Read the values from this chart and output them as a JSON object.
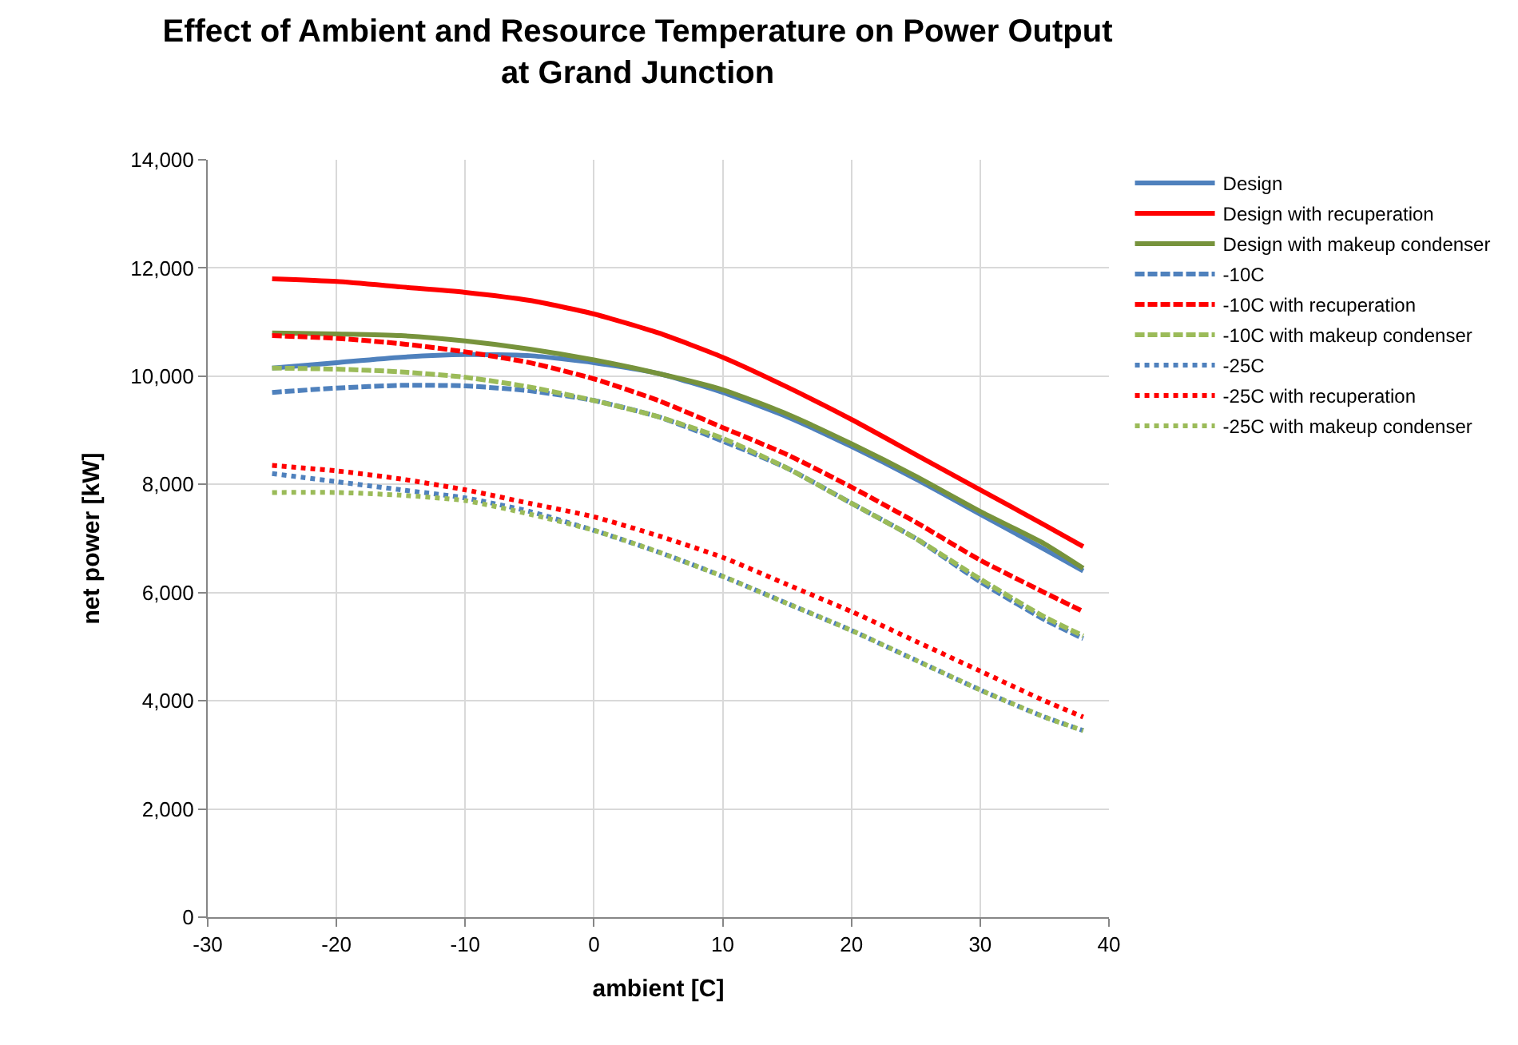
{
  "chart_data": {
    "type": "line",
    "title": "Effect of Ambient and Resource Temperature on Power Output\nat Grand Junction",
    "xlabel": "ambient [C]",
    "ylabel": "net power [kW]",
    "x": [
      -25,
      -20,
      -15,
      -10,
      -5,
      0,
      5,
      10,
      15,
      20,
      25,
      30,
      35,
      38
    ],
    "xlim": [
      -30,
      40
    ],
    "xticks": [
      -30,
      -20,
      -10,
      0,
      10,
      20,
      30,
      40
    ],
    "ylim": [
      0,
      14000
    ],
    "yticks": [
      {
        "value": 0,
        "label": "0"
      },
      {
        "value": 2000,
        "label": "2,000"
      },
      {
        "value": 4000,
        "label": "4,000"
      },
      {
        "value": 6000,
        "label": "6,000"
      },
      {
        "value": 8000,
        "label": "8,000"
      },
      {
        "value": 10000,
        "label": "10,000"
      },
      {
        "value": 12000,
        "label": "12,000"
      },
      {
        "value": 14000,
        "label": "14,000"
      }
    ],
    "grid": true,
    "legend": "right",
    "marker": "none",
    "series": [
      {
        "name": "Design",
        "color": "#4f81bd",
        "line_style": "solid",
        "values": [
          10150,
          10250,
          10350,
          10400,
          10380,
          10250,
          10050,
          9700,
          9250,
          8700,
          8100,
          7450,
          6800,
          6400
        ]
      },
      {
        "name": "Design with recuperation",
        "color": "#ff0000",
        "line_style": "solid",
        "values": [
          11800,
          11750,
          11650,
          11550,
          11400,
          11150,
          10800,
          10350,
          9800,
          9200,
          8550,
          7900,
          7250,
          6850
        ]
      },
      {
        "name": "Design with makeup condenser",
        "color": "#77933c",
        "line_style": "solid",
        "values": [
          10800,
          10780,
          10750,
          10650,
          10500,
          10300,
          10050,
          9750,
          9300,
          8750,
          8150,
          7500,
          6900,
          6450
        ]
      },
      {
        "name": "-10C",
        "color": "#4f81bd",
        "line_style": "dashed",
        "values": [
          9700,
          9780,
          9830,
          9820,
          9730,
          9550,
          9250,
          8800,
          8300,
          7650,
          7000,
          6200,
          5500,
          5150
        ]
      },
      {
        "name": "-10C with recuperation",
        "color": "#ff0000",
        "line_style": "dashed",
        "values": [
          10750,
          10700,
          10600,
          10450,
          10250,
          9950,
          9550,
          9050,
          8550,
          7950,
          7300,
          6600,
          6000,
          5650
        ]
      },
      {
        "name": "-10C with makeup condenser",
        "color": "#9bbb59",
        "line_style": "dashed",
        "values": [
          10150,
          10130,
          10080,
          9980,
          9800,
          9550,
          9250,
          8850,
          8300,
          7650,
          7000,
          6250,
          5550,
          5200
        ]
      },
      {
        "name": "-25C",
        "color": "#4f81bd",
        "line_style": "dotted",
        "values": [
          8200,
          8050,
          7900,
          7750,
          7500,
          7150,
          6750,
          6300,
          5800,
          5300,
          4750,
          4200,
          3700,
          3450
        ]
      },
      {
        "name": "-25C with recuperation",
        "color": "#ff0000",
        "line_style": "dotted",
        "values": [
          8350,
          8250,
          8100,
          7900,
          7650,
          7400,
          7050,
          6650,
          6150,
          5650,
          5100,
          4550,
          4000,
          3700
        ]
      },
      {
        "name": "-25C with makeup condenser",
        "color": "#9bbb59",
        "line_style": "dotted",
        "values": [
          7850,
          7850,
          7800,
          7700,
          7450,
          7150,
          6750,
          6300,
          5800,
          5300,
          4750,
          4200,
          3700,
          3450
        ]
      }
    ]
  }
}
